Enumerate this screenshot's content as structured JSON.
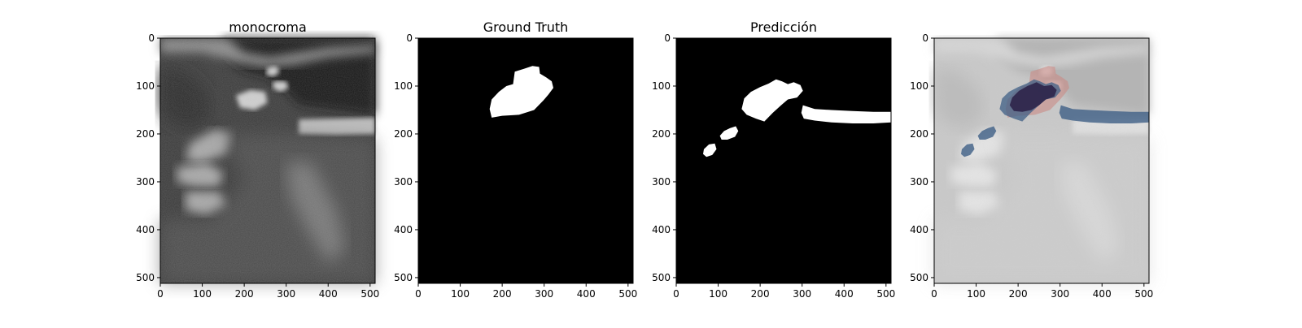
{
  "figure": {
    "panels": [
      {
        "title": "monocroma",
        "type": "grayscale-ultrasound",
        "xticks": [
          "0",
          "100",
          "200",
          "300",
          "400",
          "500"
        ],
        "yticks": [
          "0",
          "100",
          "200",
          "300",
          "400",
          "500"
        ]
      },
      {
        "title": "Ground Truth",
        "type": "binary-mask",
        "xticks": [
          "0",
          "100",
          "200",
          "300",
          "400",
          "500"
        ],
        "yticks": [
          "0",
          "100",
          "200",
          "300",
          "400",
          "500"
        ]
      },
      {
        "title": "Predicción",
        "type": "binary-mask",
        "xticks": [
          "0",
          "100",
          "200",
          "300",
          "400",
          "500"
        ],
        "yticks": [
          "0",
          "100",
          "200",
          "300",
          "400",
          "500"
        ]
      },
      {
        "title": "",
        "type": "overlay",
        "xticks": [
          "0",
          "100",
          "200",
          "300",
          "400",
          "500"
        ],
        "yticks": [
          "0",
          "100",
          "200",
          "300",
          "400",
          "500"
        ]
      }
    ],
    "colors": {
      "mask_background": "#000000",
      "mask_foreground": "#ffffff",
      "overlay_ground_truth": "#c98a85",
      "overlay_prediction": "#3f5f86",
      "overlay_intersection": "#2a1f45"
    }
  }
}
